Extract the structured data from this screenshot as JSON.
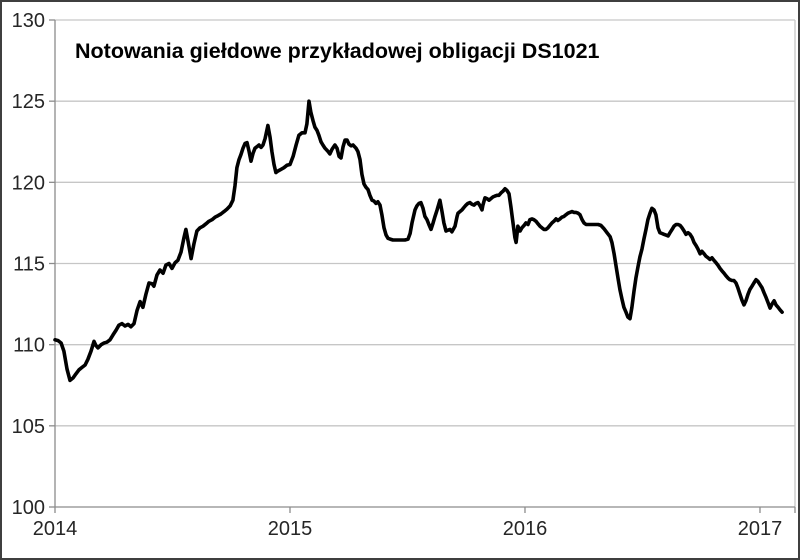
{
  "figure": {
    "title": "Notowania giełdowe przykładowej obligacji DS1021"
  },
  "colors": {
    "background": "#ffffff",
    "outer_border": "#3f3f3f",
    "gridline": "#c6c6c6",
    "axis": "#8c8c8c",
    "tick_text": "#262626",
    "line": "#000000"
  },
  "chart_data": {
    "type": "line",
    "title": "Notowania giełdowe przykładowej obligacji DS1021",
    "xlabel": "",
    "ylabel": "",
    "x_tick_labels": [
      "2014",
      "2015",
      "2016",
      "2017"
    ],
    "x_ticks": [
      2014,
      2015,
      2016,
      2017
    ],
    "y_ticks": [
      100,
      105,
      110,
      115,
      120,
      125,
      130
    ],
    "xlim": [
      2014.0,
      2017.149
    ],
    "ylim": [
      100,
      130
    ],
    "grid": "horizontal-only",
    "legend": "none",
    "line_color": "#000000",
    "line_width": 3.6,
    "points": [
      [
        2014.0,
        110.3
      ],
      [
        2014.013,
        110.25
      ],
      [
        2014.026,
        110.1
      ],
      [
        2014.038,
        109.6
      ],
      [
        2014.051,
        108.5
      ],
      [
        2014.064,
        107.8
      ],
      [
        2014.077,
        107.95
      ],
      [
        2014.089,
        108.2
      ],
      [
        2014.102,
        108.45
      ],
      [
        2014.115,
        108.6
      ],
      [
        2014.128,
        108.75
      ],
      [
        2014.14,
        109.1
      ],
      [
        2014.153,
        109.6
      ],
      [
        2014.166,
        110.2
      ],
      [
        2014.174,
        109.95
      ],
      [
        2014.183,
        109.8
      ],
      [
        2014.196,
        110.0
      ],
      [
        2014.209,
        110.1
      ],
      [
        2014.221,
        110.15
      ],
      [
        2014.234,
        110.3
      ],
      [
        2014.247,
        110.6
      ],
      [
        2014.26,
        110.9
      ],
      [
        2014.272,
        111.2
      ],
      [
        2014.285,
        111.3
      ],
      [
        2014.298,
        111.15
      ],
      [
        2014.311,
        111.25
      ],
      [
        2014.323,
        111.1
      ],
      [
        2014.336,
        111.3
      ],
      [
        2014.349,
        112.1
      ],
      [
        2014.362,
        112.65
      ],
      [
        2014.374,
        112.3
      ],
      [
        2014.387,
        113.1
      ],
      [
        2014.4,
        113.8
      ],
      [
        2014.413,
        113.75
      ],
      [
        2014.421,
        113.6
      ],
      [
        2014.434,
        114.3
      ],
      [
        2014.447,
        114.6
      ],
      [
        2014.46,
        114.4
      ],
      [
        2014.472,
        114.9
      ],
      [
        2014.485,
        115.0
      ],
      [
        2014.498,
        114.7
      ],
      [
        2014.511,
        115.05
      ],
      [
        2014.523,
        115.2
      ],
      [
        2014.536,
        115.7
      ],
      [
        2014.549,
        116.6
      ],
      [
        2014.557,
        117.1
      ],
      [
        2014.566,
        116.4
      ],
      [
        2014.579,
        115.3
      ],
      [
        2014.591,
        116.2
      ],
      [
        2014.604,
        117.0
      ],
      [
        2014.617,
        117.2
      ],
      [
        2014.63,
        117.3
      ],
      [
        2014.643,
        117.45
      ],
      [
        2014.655,
        117.6
      ],
      [
        2014.668,
        117.7
      ],
      [
        2014.681,
        117.85
      ],
      [
        2014.694,
        117.95
      ],
      [
        2014.706,
        118.05
      ],
      [
        2014.719,
        118.2
      ],
      [
        2014.732,
        118.35
      ],
      [
        2014.745,
        118.55
      ],
      [
        2014.757,
        118.9
      ],
      [
        2014.766,
        119.8
      ],
      [
        2014.774,
        120.9
      ],
      [
        2014.783,
        121.4
      ],
      [
        2014.791,
        121.7
      ],
      [
        2014.8,
        122.1
      ],
      [
        2014.809,
        122.4
      ],
      [
        2014.817,
        122.45
      ],
      [
        2014.826,
        121.9
      ],
      [
        2014.834,
        121.3
      ],
      [
        2014.843,
        121.8
      ],
      [
        2014.851,
        122.1
      ],
      [
        2014.86,
        122.2
      ],
      [
        2014.868,
        122.3
      ],
      [
        2014.877,
        122.15
      ],
      [
        2014.885,
        122.3
      ],
      [
        2014.894,
        122.7
      ],
      [
        2014.906,
        123.5
      ],
      [
        2014.915,
        122.8
      ],
      [
        2014.923,
        121.9
      ],
      [
        2014.932,
        121.1
      ],
      [
        2014.94,
        120.6
      ],
      [
        2014.949,
        120.7
      ],
      [
        2014.962,
        120.8
      ],
      [
        2014.974,
        120.9
      ],
      [
        2014.987,
        121.05
      ],
      [
        2015.0,
        121.1
      ],
      [
        2015.013,
        121.6
      ],
      [
        2015.026,
        122.3
      ],
      [
        2015.038,
        122.9
      ],
      [
        2015.051,
        123.05
      ],
      [
        2015.064,
        123.05
      ],
      [
        2015.072,
        123.6
      ],
      [
        2015.081,
        125.0
      ],
      [
        2015.089,
        124.3
      ],
      [
        2015.098,
        123.8
      ],
      [
        2015.106,
        123.4
      ],
      [
        2015.115,
        123.2
      ],
      [
        2015.123,
        122.9
      ],
      [
        2015.132,
        122.5
      ],
      [
        2015.14,
        122.3
      ],
      [
        2015.149,
        122.1
      ],
      [
        2015.162,
        121.9
      ],
      [
        2015.17,
        121.75
      ],
      [
        2015.179,
        122.05
      ],
      [
        2015.191,
        122.3
      ],
      [
        2015.2,
        122.1
      ],
      [
        2015.209,
        121.6
      ],
      [
        2015.217,
        121.5
      ],
      [
        2015.226,
        122.2
      ],
      [
        2015.234,
        122.6
      ],
      [
        2015.243,
        122.6
      ],
      [
        2015.251,
        122.35
      ],
      [
        2015.26,
        122.25
      ],
      [
        2015.268,
        122.3
      ],
      [
        2015.281,
        122.1
      ],
      [
        2015.289,
        121.9
      ],
      [
        2015.298,
        121.4
      ],
      [
        2015.306,
        120.5
      ],
      [
        2015.315,
        119.9
      ],
      [
        2015.323,
        119.7
      ],
      [
        2015.332,
        119.55
      ],
      [
        2015.34,
        119.2
      ],
      [
        2015.349,
        118.9
      ],
      [
        2015.357,
        118.85
      ],
      [
        2015.366,
        118.7
      ],
      [
        2015.374,
        118.8
      ],
      [
        2015.383,
        118.6
      ],
      [
        2015.391,
        118.0
      ],
      [
        2015.4,
        117.2
      ],
      [
        2015.409,
        116.75
      ],
      [
        2015.417,
        116.55
      ],
      [
        2015.426,
        116.5
      ],
      [
        2015.438,
        116.45
      ],
      [
        2015.451,
        116.45
      ],
      [
        2015.464,
        116.45
      ],
      [
        2015.477,
        116.45
      ],
      [
        2015.489,
        116.45
      ],
      [
        2015.502,
        116.5
      ],
      [
        2015.511,
        116.85
      ],
      [
        2015.519,
        117.5
      ],
      [
        2015.532,
        118.3
      ],
      [
        2015.54,
        118.55
      ],
      [
        2015.549,
        118.7
      ],
      [
        2015.557,
        118.75
      ],
      [
        2015.566,
        118.4
      ],
      [
        2015.574,
        117.9
      ],
      [
        2015.583,
        117.7
      ],
      [
        2015.591,
        117.4
      ],
      [
        2015.6,
        117.1
      ],
      [
        2015.609,
        117.5
      ],
      [
        2015.617,
        117.9
      ],
      [
        2015.626,
        118.3
      ],
      [
        2015.634,
        118.7
      ],
      [
        2015.638,
        118.9
      ],
      [
        2015.647,
        118.2
      ],
      [
        2015.655,
        117.5
      ],
      [
        2015.664,
        117.0
      ],
      [
        2015.672,
        117.05
      ],
      [
        2015.681,
        117.1
      ],
      [
        2015.689,
        116.95
      ],
      [
        2015.702,
        117.3
      ],
      [
        2015.711,
        117.9
      ],
      [
        2015.715,
        118.1
      ],
      [
        2015.723,
        118.2
      ],
      [
        2015.732,
        118.3
      ],
      [
        2015.74,
        118.45
      ],
      [
        2015.749,
        118.6
      ],
      [
        2015.757,
        118.7
      ],
      [
        2015.766,
        118.75
      ],
      [
        2015.774,
        118.65
      ],
      [
        2015.783,
        118.6
      ],
      [
        2015.791,
        118.7
      ],
      [
        2015.8,
        118.75
      ],
      [
        2015.809,
        118.55
      ],
      [
        2015.817,
        118.3
      ],
      [
        2015.821,
        118.6
      ],
      [
        2015.83,
        119.05
      ],
      [
        2015.838,
        119.0
      ],
      [
        2015.847,
        118.9
      ],
      [
        2015.855,
        119.0
      ],
      [
        2015.864,
        119.1
      ],
      [
        2015.872,
        119.15
      ],
      [
        2015.881,
        119.2
      ],
      [
        2015.889,
        119.2
      ],
      [
        2015.898,
        119.35
      ],
      [
        2015.906,
        119.45
      ],
      [
        2015.915,
        119.6
      ],
      [
        2015.923,
        119.5
      ],
      [
        2015.932,
        119.3
      ],
      [
        2015.94,
        118.5
      ],
      [
        2015.949,
        117.5
      ],
      [
        2015.957,
        116.6
      ],
      [
        2015.962,
        116.3
      ],
      [
        2015.97,
        117.3
      ],
      [
        2015.979,
        117.0
      ],
      [
        2015.987,
        117.2
      ],
      [
        2015.996,
        117.35
      ],
      [
        2016.004,
        117.5
      ],
      [
        2016.013,
        117.4
      ],
      [
        2016.021,
        117.7
      ],
      [
        2016.03,
        117.75
      ],
      [
        2016.038,
        117.7
      ],
      [
        2016.047,
        117.6
      ],
      [
        2016.055,
        117.45
      ],
      [
        2016.064,
        117.3
      ],
      [
        2016.072,
        117.2
      ],
      [
        2016.081,
        117.1
      ],
      [
        2016.089,
        117.1
      ],
      [
        2016.098,
        117.2
      ],
      [
        2016.106,
        117.35
      ],
      [
        2016.115,
        117.5
      ],
      [
        2016.123,
        117.6
      ],
      [
        2016.132,
        117.75
      ],
      [
        2016.14,
        117.65
      ],
      [
        2016.149,
        117.75
      ],
      [
        2016.157,
        117.85
      ],
      [
        2016.166,
        117.9
      ],
      [
        2016.174,
        118.0
      ],
      [
        2016.183,
        118.1
      ],
      [
        2016.191,
        118.15
      ],
      [
        2016.2,
        118.2
      ],
      [
        2016.209,
        118.15
      ],
      [
        2016.217,
        118.15
      ],
      [
        2016.226,
        118.1
      ],
      [
        2016.234,
        118.0
      ],
      [
        2016.243,
        117.7
      ],
      [
        2016.251,
        117.5
      ],
      [
        2016.26,
        117.4
      ],
      [
        2016.272,
        117.4
      ],
      [
        2016.285,
        117.4
      ],
      [
        2016.298,
        117.4
      ],
      [
        2016.311,
        117.4
      ],
      [
        2016.323,
        117.35
      ],
      [
        2016.336,
        117.15
      ],
      [
        2016.349,
        116.9
      ],
      [
        2016.362,
        116.65
      ],
      [
        2016.37,
        116.3
      ],
      [
        2016.379,
        115.6
      ],
      [
        2016.387,
        114.9
      ],
      [
        2016.396,
        114.1
      ],
      [
        2016.404,
        113.4
      ],
      [
        2016.413,
        112.8
      ],
      [
        2016.421,
        112.3
      ],
      [
        2016.43,
        112.0
      ],
      [
        2016.438,
        111.7
      ],
      [
        2016.447,
        111.6
      ],
      [
        2016.455,
        112.3
      ],
      [
        2016.464,
        113.3
      ],
      [
        2016.472,
        114.1
      ],
      [
        2016.481,
        114.8
      ],
      [
        2016.489,
        115.4
      ],
      [
        2016.498,
        115.9
      ],
      [
        2016.506,
        116.5
      ],
      [
        2016.515,
        117.1
      ],
      [
        2016.523,
        117.7
      ],
      [
        2016.532,
        118.1
      ],
      [
        2016.54,
        118.4
      ],
      [
        2016.549,
        118.3
      ],
      [
        2016.557,
        118.0
      ],
      [
        2016.566,
        117.2
      ],
      [
        2016.574,
        116.9
      ],
      [
        2016.583,
        116.85
      ],
      [
        2016.591,
        116.8
      ],
      [
        2016.6,
        116.75
      ],
      [
        2016.609,
        116.7
      ],
      [
        2016.617,
        116.9
      ],
      [
        2016.626,
        117.1
      ],
      [
        2016.634,
        117.3
      ],
      [
        2016.643,
        117.4
      ],
      [
        2016.651,
        117.4
      ],
      [
        2016.66,
        117.35
      ],
      [
        2016.668,
        117.2
      ],
      [
        2016.677,
        117.0
      ],
      [
        2016.685,
        116.8
      ],
      [
        2016.694,
        116.9
      ],
      [
        2016.702,
        116.8
      ],
      [
        2016.711,
        116.6
      ],
      [
        2016.719,
        116.3
      ],
      [
        2016.728,
        116.1
      ],
      [
        2016.736,
        115.9
      ],
      [
        2016.745,
        115.6
      ],
      [
        2016.753,
        115.75
      ],
      [
        2016.762,
        115.6
      ],
      [
        2016.77,
        115.45
      ],
      [
        2016.779,
        115.35
      ],
      [
        2016.787,
        115.25
      ],
      [
        2016.796,
        115.35
      ],
      [
        2016.804,
        115.2
      ],
      [
        2016.813,
        115.05
      ],
      [
        2016.821,
        114.9
      ],
      [
        2016.83,
        114.7
      ],
      [
        2016.838,
        114.55
      ],
      [
        2016.847,
        114.4
      ],
      [
        2016.855,
        114.25
      ],
      [
        2016.864,
        114.1
      ],
      [
        2016.872,
        114.0
      ],
      [
        2016.881,
        113.95
      ],
      [
        2016.889,
        113.95
      ],
      [
        2016.898,
        113.8
      ],
      [
        2016.906,
        113.5
      ],
      [
        2016.915,
        113.1
      ],
      [
        2016.923,
        112.75
      ],
      [
        2016.932,
        112.45
      ],
      [
        2016.94,
        112.7
      ],
      [
        2016.949,
        113.1
      ],
      [
        2016.957,
        113.4
      ],
      [
        2016.966,
        113.6
      ],
      [
        2016.974,
        113.8
      ],
      [
        2016.983,
        114.0
      ],
      [
        2016.991,
        113.9
      ],
      [
        2017.0,
        113.7
      ],
      [
        2017.009,
        113.5
      ],
      [
        2017.017,
        113.2
      ],
      [
        2017.026,
        112.9
      ],
      [
        2017.034,
        112.6
      ],
      [
        2017.043,
        112.25
      ],
      [
        2017.051,
        112.5
      ],
      [
        2017.06,
        112.7
      ],
      [
        2017.068,
        112.45
      ],
      [
        2017.077,
        112.3
      ],
      [
        2017.085,
        112.15
      ],
      [
        2017.094,
        112.0
      ]
    ]
  }
}
